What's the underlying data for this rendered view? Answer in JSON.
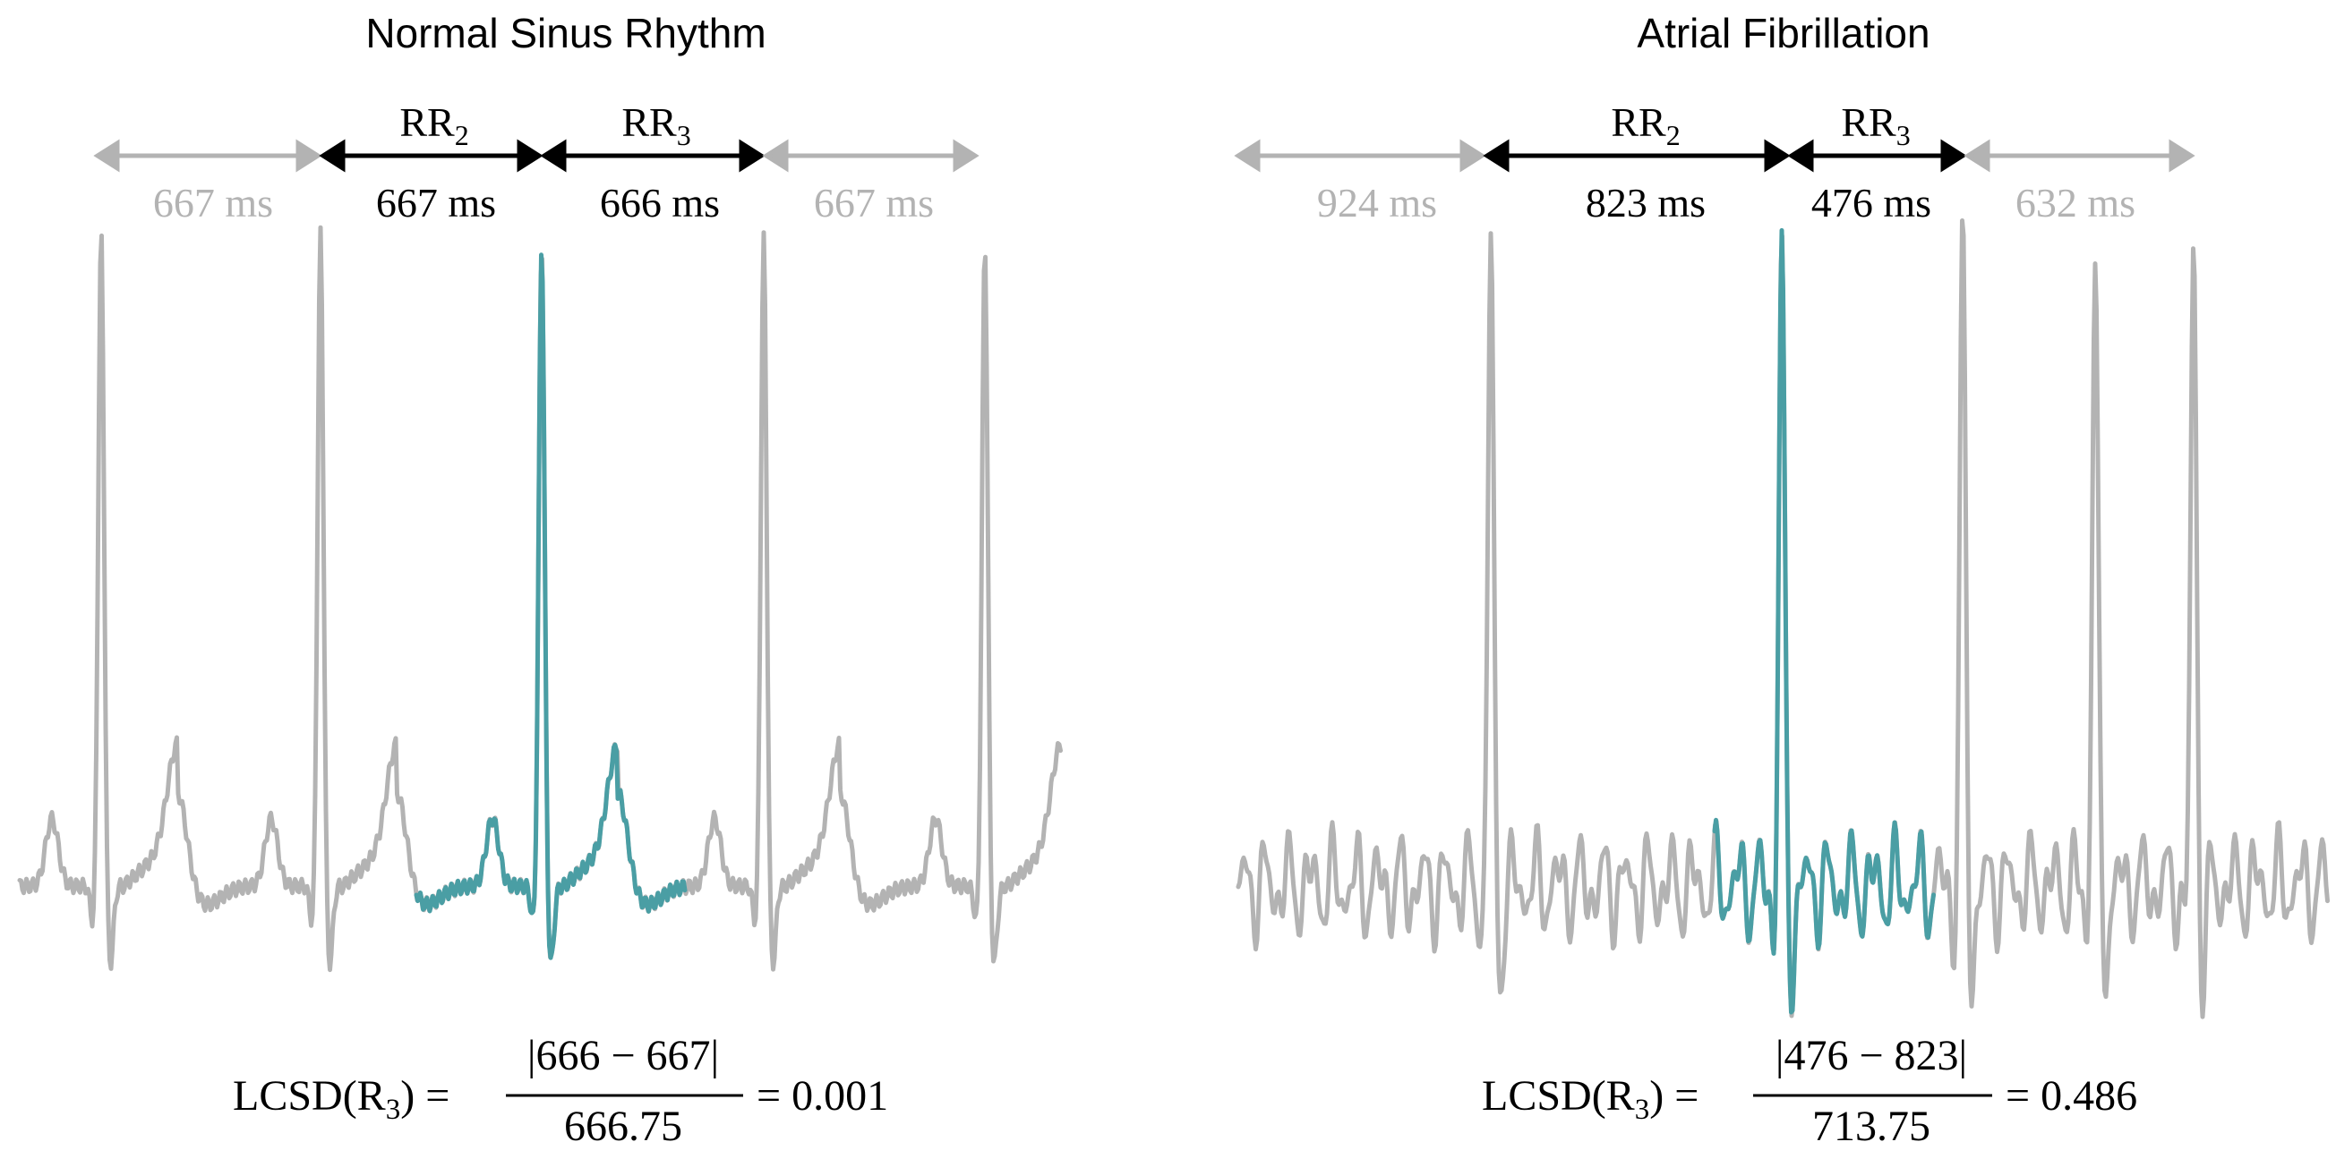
{
  "colors": {
    "background_trace": "#b3b3b3",
    "highlight_trace": "#4a9ea4",
    "active_arrow": "#000000",
    "faded_arrow": "#b3b3b3"
  },
  "panels": [
    {
      "title": "Normal Sinus Rhythm",
      "rhythm": "regular",
      "rr_labels": [
        {
          "base": "RR",
          "sub": "2"
        },
        {
          "base": "RR",
          "sub": "3"
        }
      ],
      "intervals": [
        {
          "text": "667 ms",
          "ms": 667,
          "active": false
        },
        {
          "text": "667 ms",
          "ms": 667,
          "active": true
        },
        {
          "text": "666 ms",
          "ms": 666,
          "active": true
        },
        {
          "text": "667 ms",
          "ms": 667,
          "active": false
        }
      ],
      "formula": {
        "lhs_base": "LCSD(R",
        "lhs_sub": "3",
        "lhs_close": ") =",
        "numerator": "|666 − 667|",
        "denominator": "666.75",
        "result": "= 0.001"
      }
    },
    {
      "title": "Atrial Fibrillation",
      "rhythm": "irregular",
      "rr_labels": [
        {
          "base": "RR",
          "sub": "2"
        },
        {
          "base": "RR",
          "sub": "3"
        }
      ],
      "intervals": [
        {
          "text": "924 ms",
          "ms": 924,
          "active": false
        },
        {
          "text": "823 ms",
          "ms": 823,
          "active": true
        },
        {
          "text": "476 ms",
          "ms": 476,
          "active": true
        },
        {
          "text": "632 ms",
          "ms": 632,
          "active": false
        }
      ],
      "formula": {
        "lhs_base": "LCSD(R",
        "lhs_sub": "3",
        "lhs_close": ") =",
        "numerator": "|476 − 823|",
        "denominator": "713.75",
        "result": "= 0.486"
      }
    }
  ]
}
